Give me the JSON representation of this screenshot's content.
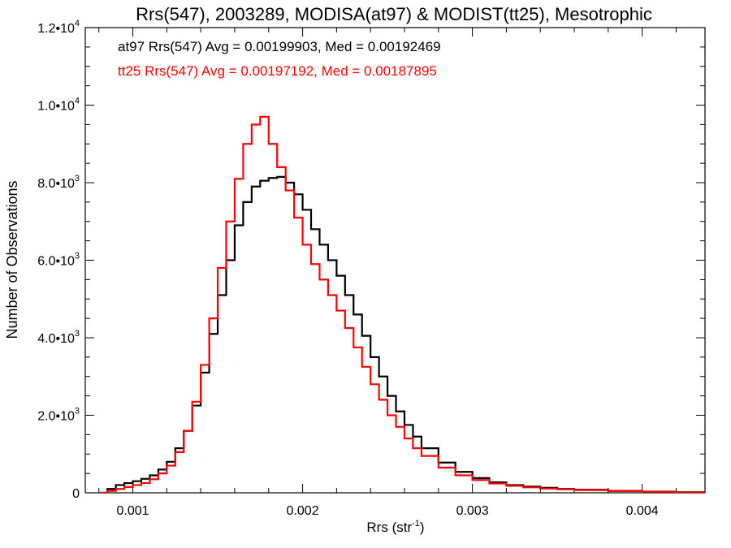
{
  "chart_data": {
    "type": "line",
    "title": "Rrs(547), 2003289, MODISA(at97) & MODIST(tt25), Mesotrophic",
    "xlabel_main": "Rrs (str",
    "xlabel_exp": "-1",
    "xlabel_tail": ")",
    "ylabel": "Number of Observations",
    "xlim": [
      0.00072,
      0.00437
    ],
    "ylim": [
      0,
      12000
    ],
    "grid": false,
    "x_ticks": [
      {
        "value": 0.001,
        "label": "0.001"
      },
      {
        "value": 0.002,
        "label": "0.002"
      },
      {
        "value": 0.003,
        "label": "0.003"
      },
      {
        "value": 0.004,
        "label": "0.004"
      }
    ],
    "y_ticks": [
      {
        "value": 0,
        "mant": "0",
        "exp": ""
      },
      {
        "value": 2000,
        "mant": "2.0•10",
        "exp": "3"
      },
      {
        "value": 4000,
        "mant": "4.0•10",
        "exp": "3"
      },
      {
        "value": 6000,
        "mant": "6.0•10",
        "exp": "3"
      },
      {
        "value": 8000,
        "mant": "8.0•10",
        "exp": "3"
      },
      {
        "value": 10000,
        "mant": "1.0•10",
        "exp": "4"
      },
      {
        "value": 12000,
        "mant": "1.2•10",
        "exp": "4"
      }
    ],
    "annotations": [
      {
        "text": "at97 Rrs(547) Avg = 0.00199903, Med = 0.00192469",
        "color": "#000000"
      },
      {
        "text": "tt25 Rrs(547) Avg = 0.00197192, Med = 0.00187895",
        "color": "#ff0000"
      }
    ],
    "series": [
      {
        "color": "#000000",
        "x": [
          0.0008,
          0.00085,
          0.0009,
          0.00095,
          0.001,
          0.00105,
          0.0011,
          0.00115,
          0.0012,
          0.00125,
          0.0013,
          0.00135,
          0.0014,
          0.00145,
          0.0015,
          0.00155,
          0.0016,
          0.00165,
          0.0017,
          0.00175,
          0.0018,
          0.00185,
          0.0019,
          0.00195,
          0.002,
          0.00205,
          0.0021,
          0.00215,
          0.0022,
          0.00225,
          0.0023,
          0.00235,
          0.0024,
          0.00245,
          0.0025,
          0.00255,
          0.0026,
          0.00265,
          0.0027,
          0.0028,
          0.0029,
          0.003,
          0.0031,
          0.0032,
          0.0033,
          0.0034,
          0.0035,
          0.0036,
          0.0038,
          0.004,
          0.0042,
          0.00437
        ],
        "y": [
          0,
          100,
          200,
          250,
          300,
          360,
          450,
          600,
          800,
          1150,
          1600,
          2250,
          3100,
          4100,
          5100,
          6000,
          6900,
          7500,
          7900,
          8050,
          8120,
          8150,
          8000,
          7700,
          7300,
          6800,
          6400,
          6000,
          5600,
          5100,
          4600,
          4050,
          3500,
          3000,
          2500,
          2100,
          1750,
          1450,
          1150,
          780,
          540,
          380,
          270,
          200,
          160,
          130,
          100,
          80,
          50,
          30,
          15,
          5
        ]
      },
      {
        "color": "#ff0000",
        "x": [
          0.0008,
          0.00085,
          0.0009,
          0.00095,
          0.001,
          0.00105,
          0.0011,
          0.00115,
          0.0012,
          0.00125,
          0.0013,
          0.00135,
          0.0014,
          0.00145,
          0.0015,
          0.00155,
          0.0016,
          0.00165,
          0.0017,
          0.00175,
          0.0018,
          0.00185,
          0.0019,
          0.00195,
          0.002,
          0.00205,
          0.0021,
          0.00215,
          0.0022,
          0.00225,
          0.0023,
          0.00235,
          0.0024,
          0.00245,
          0.0025,
          0.00255,
          0.0026,
          0.00265,
          0.0027,
          0.0028,
          0.0029,
          0.003,
          0.0031,
          0.0032,
          0.0033,
          0.0034,
          0.0035,
          0.0036,
          0.0038,
          0.004,
          0.0042,
          0.00437
        ],
        "y": [
          0,
          50,
          100,
          150,
          200,
          250,
          350,
          500,
          700,
          1050,
          1600,
          2350,
          3300,
          4500,
          5800,
          7000,
          8100,
          9000,
          9500,
          9700,
          9000,
          8400,
          7800,
          7100,
          6400,
          5900,
          5500,
          5100,
          4700,
          4250,
          3750,
          3250,
          2800,
          2400,
          2000,
          1700,
          1400,
          1150,
          950,
          650,
          450,
          330,
          240,
          180,
          140,
          110,
          90,
          70,
          45,
          25,
          12,
          5
        ]
      }
    ]
  }
}
